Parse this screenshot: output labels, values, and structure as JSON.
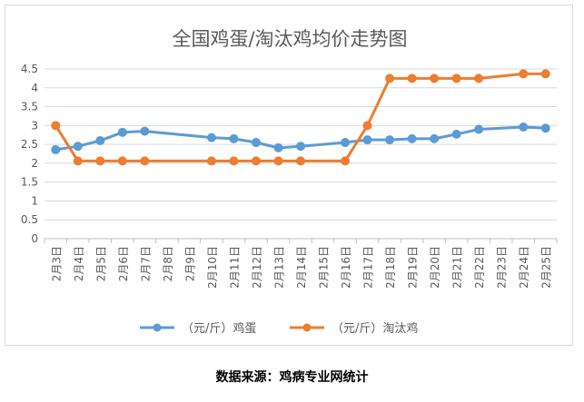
{
  "chart_data": {
    "type": "line",
    "title": "全国鸡蛋/淘汰鸡均价走势图",
    "categories": [
      "2月3日",
      "2月4日",
      "2月5日",
      "2月6日",
      "2月7日",
      "2月8日",
      "2月9日",
      "2月10日",
      "2月11日",
      "2月12日",
      "2月13日",
      "2月14日",
      "2月15日",
      "2月16日",
      "2月17日",
      "2月18日",
      "2月19日",
      "2月20日",
      "2月21日",
      "2月22日",
      "2月23日",
      "2月24日",
      "2月25日"
    ],
    "series": [
      {
        "name": "（元/斤）鸡蛋",
        "color": "#5b9bd5",
        "values": [
          2.36,
          2.45,
          2.6,
          2.82,
          2.85,
          null,
          null,
          2.68,
          2.65,
          2.55,
          2.41,
          2.45,
          null,
          2.55,
          2.62,
          2.62,
          2.65,
          2.65,
          2.77,
          2.9,
          null,
          2.96,
          2.93
        ]
      },
      {
        "name": "（元/斤）淘汰鸡",
        "color": "#ed7d31",
        "values": [
          3.0,
          2.06,
          2.06,
          2.06,
          2.06,
          null,
          null,
          2.06,
          2.06,
          2.06,
          2.06,
          2.06,
          null,
          2.06,
          3.0,
          4.25,
          4.25,
          4.25,
          4.25,
          4.25,
          null,
          4.37,
          4.37
        ]
      }
    ],
    "yticks": [
      "0",
      "0.5",
      "1",
      "1.5",
      "2",
      "2.5",
      "3",
      "3.5",
      "4",
      "4.5"
    ],
    "ylim": [
      0,
      4.5
    ],
    "grid": true,
    "legend_position": "bottom"
  },
  "source_note": "数据来源：鸡病专业网统计"
}
